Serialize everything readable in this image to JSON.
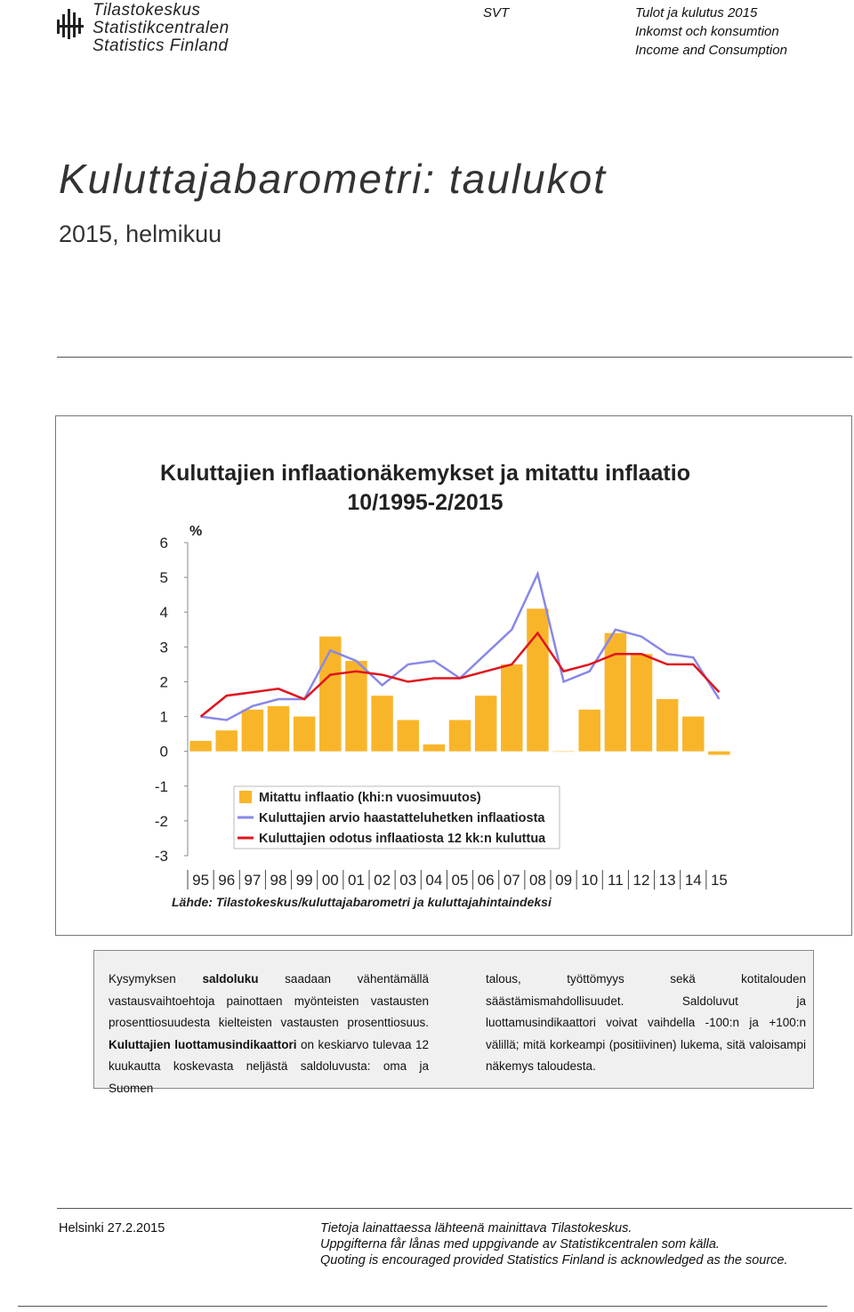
{
  "header": {
    "logo": [
      "Tilastokeskus",
      "Statistikcentralen",
      "Statistics Finland"
    ],
    "series_code": "SVT",
    "publication": [
      "Tulot ja kulutus 2015",
      "Inkomst och konsumtion",
      "Income and Consumption"
    ]
  },
  "title": "Kuluttajabarometri: taulukot",
  "subtitle": "2015, helmikuu",
  "chart_data": {
    "type": "bar_line",
    "title": "Kuluttajien inflaationäkemykset ja mitattu inflaatio",
    "subtitle": "10/1995-2/2015",
    "y_label": "%",
    "source": "Lähde: Tilastokeskus/kuluttajabarometri ja kuluttajahintaindeksi",
    "categories": [
      "95",
      "96",
      "97",
      "98",
      "99",
      "00",
      "01",
      "02",
      "03",
      "04",
      "05",
      "06",
      "07",
      "08",
      "09",
      "10",
      "11",
      "12",
      "13",
      "14",
      "15"
    ],
    "ylim": [
      -3,
      6
    ],
    "yticks": [
      -3,
      -2,
      -1,
      0,
      1,
      2,
      3,
      4,
      5,
      6
    ],
    "series": [
      {
        "name": "Mitattu inflaatio (khi:n vuosimuutos)",
        "color": "#f9b52a",
        "kind": "bar",
        "values": [
          0.3,
          0.6,
          1.2,
          1.3,
          1.0,
          3.3,
          2.6,
          1.6,
          0.9,
          0.2,
          0.9,
          1.6,
          2.5,
          4.1,
          0.0,
          1.2,
          3.4,
          2.8,
          1.5,
          1.0,
          -0.1
        ]
      },
      {
        "name": "Kuluttajien arvio haastatteluhetken inflaatiosta",
        "color": "#8888e8",
        "kind": "line",
        "values": [
          1.0,
          0.9,
          1.3,
          1.5,
          1.5,
          2.9,
          2.6,
          1.9,
          2.5,
          2.6,
          2.1,
          2.8,
          3.5,
          5.1,
          2.0,
          2.3,
          3.5,
          3.3,
          2.8,
          2.7,
          1.5
        ]
      },
      {
        "name": "Kuluttajien odotus inflaatiosta 12 kk:n kuluttua",
        "color": "#e0141e",
        "kind": "line",
        "values": [
          1.0,
          1.6,
          1.7,
          1.8,
          1.5,
          2.2,
          2.3,
          2.2,
          2.0,
          2.1,
          2.1,
          2.3,
          2.5,
          3.4,
          2.3,
          2.5,
          2.8,
          2.8,
          2.5,
          2.5,
          1.7
        ]
      }
    ]
  },
  "text_box": {
    "left": [
      {
        "text": "Kysymyksen ",
        "bold": false
      },
      {
        "text": "saldoluku",
        "bold": true
      },
      {
        "text": " saadaan vähentämällä vastausvaihtoehtoja painottaen myönteisten vastausten prosenttiosuudesta kielteisten vastausten prosenttiosuus. ",
        "bold": false
      },
      {
        "text": "Kuluttajien luottamusindikaattori",
        "bold": true
      },
      {
        "text": " on keskiarvo tulevaa 12 kuukautta koskevasta neljästä saldoluvusta: oma ja Suomen",
        "bold": false
      }
    ],
    "right": [
      {
        "text": "talous, työttömyys sekä kotitalouden säästämismahdollisuudet. Saldoluvut ja luottamusindikaattori voivat vaihdella -100:n ja +100:n välillä; mitä korkeampi (positiivinen) lukema, sitä valoisampi näkemys taloudesta.",
        "bold": false
      }
    ]
  },
  "footer": {
    "place_date": "Helsinki 27.2.2015",
    "notes": [
      "Tietoja lainattaessa lähteenä mainittava Tilastokeskus.",
      "Uppgifterna får lånas med uppgivande av Statistikcentralen som källa.",
      "Quoting is encouraged provided Statistics Finland is acknowledged as the source."
    ]
  }
}
